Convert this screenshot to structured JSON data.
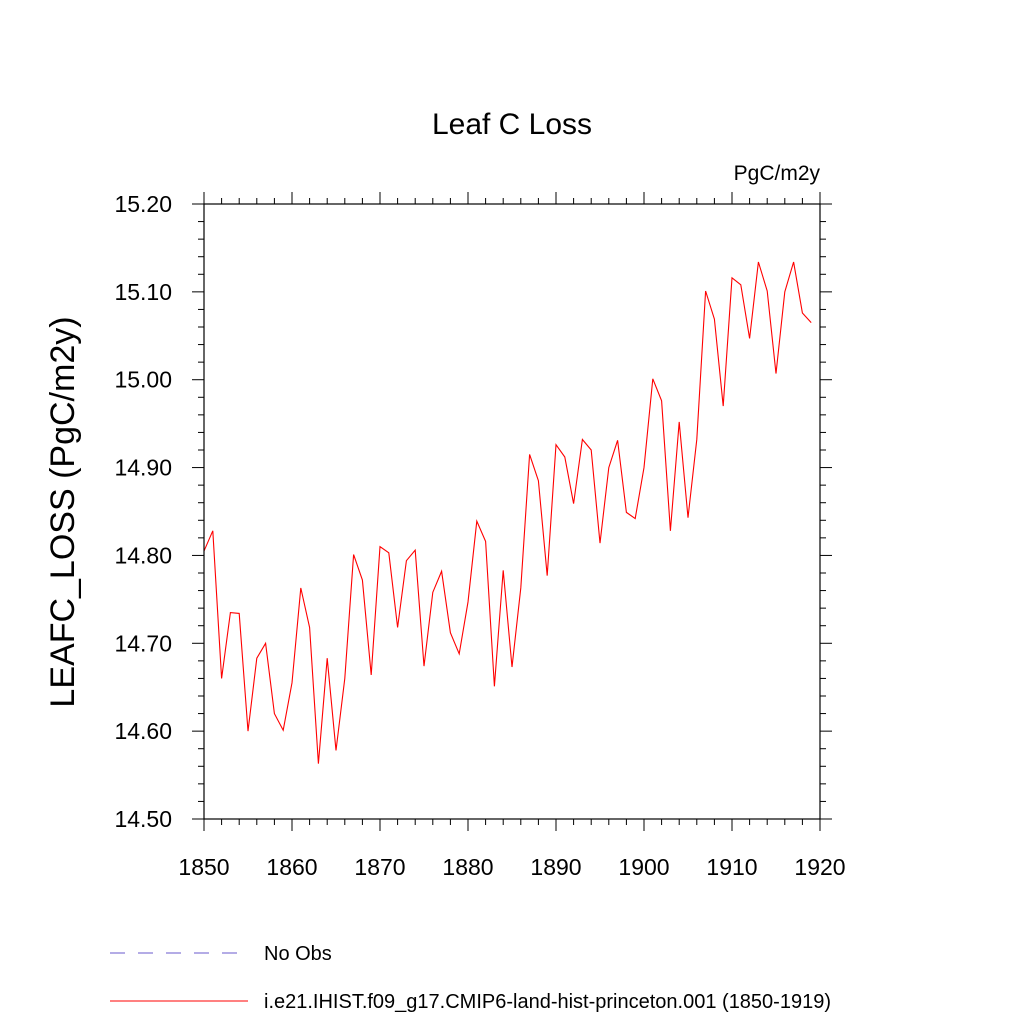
{
  "chart_data": {
    "type": "line",
    "title": "Leaf C Loss",
    "units": "PgC/m2y",
    "ylabel": "LEAFC_LOSS  (PgC/m2y)",
    "xlabel": "",
    "xlim": [
      1850,
      1920
    ],
    "ylim": [
      14.5,
      15.2
    ],
    "x_ticks": [
      1850,
      1860,
      1870,
      1880,
      1890,
      1900,
      1910,
      1920
    ],
    "y_ticks": [
      14.5,
      14.6,
      14.7,
      14.8,
      14.9,
      15.0,
      15.1,
      15.2
    ],
    "x_tick_labels": [
      "1850",
      "1860",
      "1870",
      "1880",
      "1890",
      "1900",
      "1910",
      "1920"
    ],
    "y_tick_labels": [
      "14.50",
      "14.60",
      "14.70",
      "14.80",
      "14.90",
      "15.00",
      "15.10",
      "15.20"
    ],
    "grid": false,
    "legend_position": "bottom",
    "series": [
      {
        "name": "i.e21.IHIST.f09_g17.CMIP6-land-hist-princeton.001 (1850-1919)",
        "color": "#ff0000",
        "style": "solid",
        "x": [
          1850,
          1851,
          1852,
          1853,
          1854,
          1855,
          1856,
          1857,
          1858,
          1859,
          1860,
          1861,
          1862,
          1863,
          1864,
          1865,
          1866,
          1867,
          1868,
          1869,
          1870,
          1871,
          1872,
          1873,
          1874,
          1875,
          1876,
          1877,
          1878,
          1879,
          1880,
          1881,
          1882,
          1883,
          1884,
          1885,
          1886,
          1887,
          1888,
          1889,
          1890,
          1891,
          1892,
          1893,
          1894,
          1895,
          1896,
          1897,
          1898,
          1899,
          1900,
          1901,
          1902,
          1903,
          1904,
          1905,
          1906,
          1907,
          1908,
          1909,
          1910,
          1911,
          1912,
          1913,
          1914,
          1915,
          1916,
          1917,
          1918,
          1919
        ],
        "values": [
          14.805,
          14.828,
          14.66,
          14.735,
          14.734,
          14.6,
          14.683,
          14.7,
          14.62,
          14.601,
          14.655,
          14.763,
          14.718,
          14.563,
          14.683,
          14.578,
          14.66,
          14.801,
          14.772,
          14.664,
          14.81,
          14.803,
          14.718,
          14.794,
          14.806,
          14.674,
          14.758,
          14.782,
          14.712,
          14.688,
          14.747,
          14.839,
          14.816,
          14.651,
          14.783,
          14.673,
          14.763,
          14.915,
          14.885,
          14.777,
          14.926,
          14.912,
          14.859,
          14.932,
          14.92,
          14.814,
          14.9,
          14.931,
          14.849,
          14.842,
          14.9,
          15.001,
          14.976,
          14.828,
          14.952,
          14.843,
          14.932,
          15.101,
          15.069,
          14.97,
          15.116,
          15.108,
          15.047,
          15.134,
          15.101,
          15.007,
          15.1,
          15.134,
          15.076,
          15.065
        ]
      }
    ],
    "legend": [
      {
        "label": "No Obs",
        "color": "#6a5acd",
        "style": "dashed"
      },
      {
        "label": "i.e21.IHIST.f09_g17.CMIP6-land-hist-princeton.001 (1850-1919)",
        "color": "#ff0000",
        "style": "solid"
      }
    ]
  }
}
